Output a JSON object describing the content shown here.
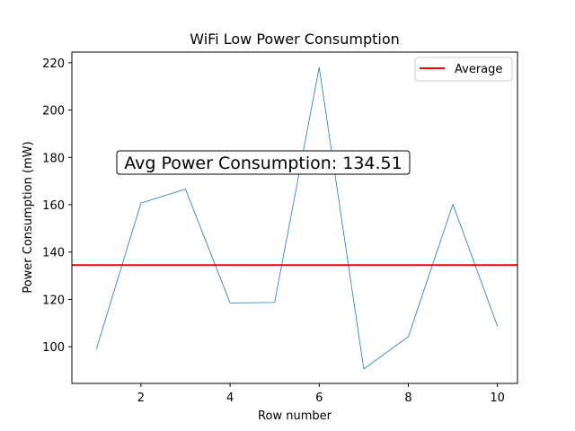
{
  "chart_data": {
    "type": "line",
    "title": "WiFi Low Power Consumption",
    "xlabel": "Row number",
    "ylabel": "Power Consumption (mW)",
    "x": [
      1,
      2,
      3,
      4,
      5,
      6,
      7,
      8,
      9,
      10
    ],
    "series": [
      {
        "values": [
          99.0,
          160.7,
          166.6,
          118.5,
          118.7,
          218.0,
          90.6,
          104.2,
          160.2,
          108.7
        ],
        "color": "#1f77b4"
      }
    ],
    "average": {
      "label": "Average",
      "value": 134.51,
      "color": "#ff0000"
    },
    "annotation": "Avg Power Consumption: 134.51",
    "xlim": [
      0.45,
      10.45
    ],
    "ylim": [
      84.5,
      224.5
    ],
    "xticks": [
      2,
      4,
      6,
      8,
      10
    ],
    "yticks": [
      100,
      120,
      140,
      160,
      180,
      200,
      220
    ],
    "grid": false,
    "legend_position": "top-right"
  }
}
